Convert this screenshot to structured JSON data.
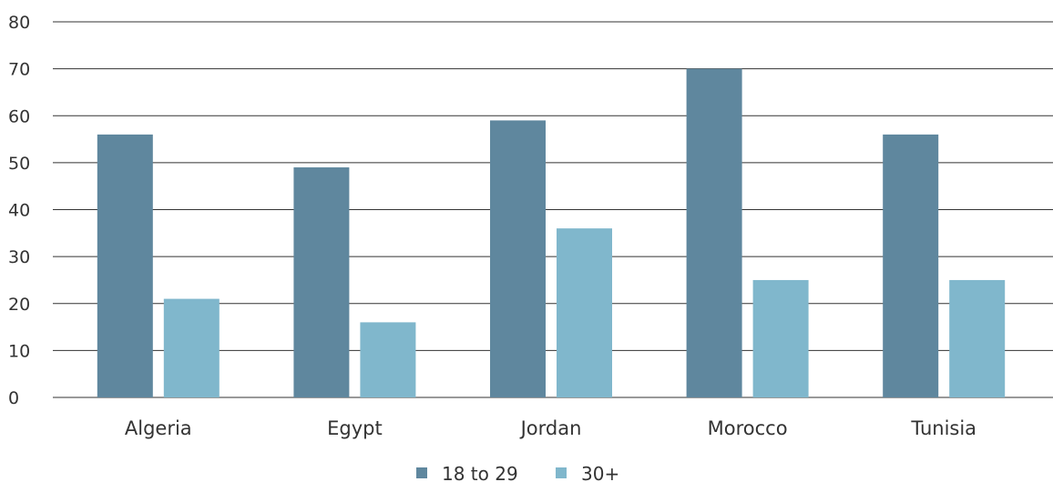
{
  "chart_data": {
    "type": "bar",
    "title": "",
    "xlabel": "",
    "ylabel": "",
    "categories": [
      "Algeria",
      "Egypt",
      "Jordan",
      "Morocco",
      "Tunisia"
    ],
    "series": [
      {
        "name": "18 to 29",
        "values": [
          56,
          49,
          59,
          70,
          56
        ],
        "color": "#5f879e"
      },
      {
        "name": "30+",
        "values": [
          21,
          16,
          36,
          25,
          25
        ],
        "color": "#80b7cc"
      }
    ],
    "ylim": [
      0,
      80
    ],
    "yticks": [
      "0",
      "10",
      "20",
      "30",
      "40",
      "50",
      "60",
      "70",
      "80"
    ],
    "grid": true,
    "legend_position": "bottom-center",
    "gridline_color": "#333333"
  }
}
